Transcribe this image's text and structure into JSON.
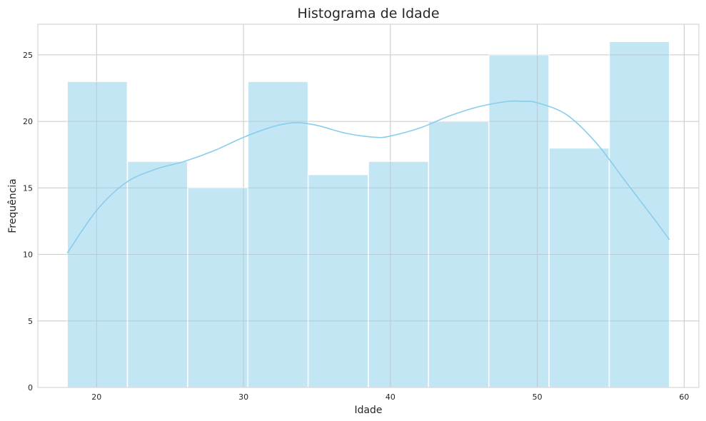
{
  "chart_data": {
    "type": "bar",
    "title": "Histograma de Idade",
    "xlabel": "Idade",
    "ylabel": "Frequência",
    "xlim": [
      16,
      61
    ],
    "ylim": [
      0,
      27.3
    ],
    "xticks": [
      20,
      30,
      40,
      50,
      60
    ],
    "yticks": [
      0,
      5,
      10,
      15,
      20,
      25
    ],
    "grid": true,
    "bins": [
      {
        "start": 18.0,
        "end": 22.1,
        "count": 23
      },
      {
        "start": 22.1,
        "end": 26.2,
        "count": 17
      },
      {
        "start": 26.2,
        "end": 30.3,
        "count": 15
      },
      {
        "start": 30.3,
        "end": 34.4,
        "count": 23
      },
      {
        "start": 34.4,
        "end": 38.5,
        "count": 16
      },
      {
        "start": 38.5,
        "end": 42.6,
        "count": 17
      },
      {
        "start": 42.6,
        "end": 46.7,
        "count": 20
      },
      {
        "start": 46.7,
        "end": 50.8,
        "count": 25
      },
      {
        "start": 50.8,
        "end": 54.9,
        "count": 18
      },
      {
        "start": 54.9,
        "end": 59.0,
        "count": 26
      }
    ],
    "kde": {
      "x": [
        18,
        20,
        22,
        24,
        26,
        28,
        30,
        32,
        33.5,
        35,
        37,
        39,
        40,
        42,
        44,
        46,
        48,
        49,
        50,
        52,
        54,
        56,
        58,
        59
      ],
      "y": [
        10.1,
        13.3,
        15.4,
        16.4,
        17.0,
        17.8,
        18.8,
        19.6,
        19.9,
        19.7,
        19.1,
        18.8,
        18.9,
        19.5,
        20.4,
        21.1,
        21.5,
        21.5,
        21.4,
        20.5,
        18.4,
        15.5,
        12.6,
        11.1
      ]
    },
    "colors": {
      "bar_fill": "#87ceeb",
      "bar_opacity": 0.5,
      "kde_line": "#87ceeb",
      "grid": "#cccccc",
      "spine": "#cccccc"
    }
  }
}
